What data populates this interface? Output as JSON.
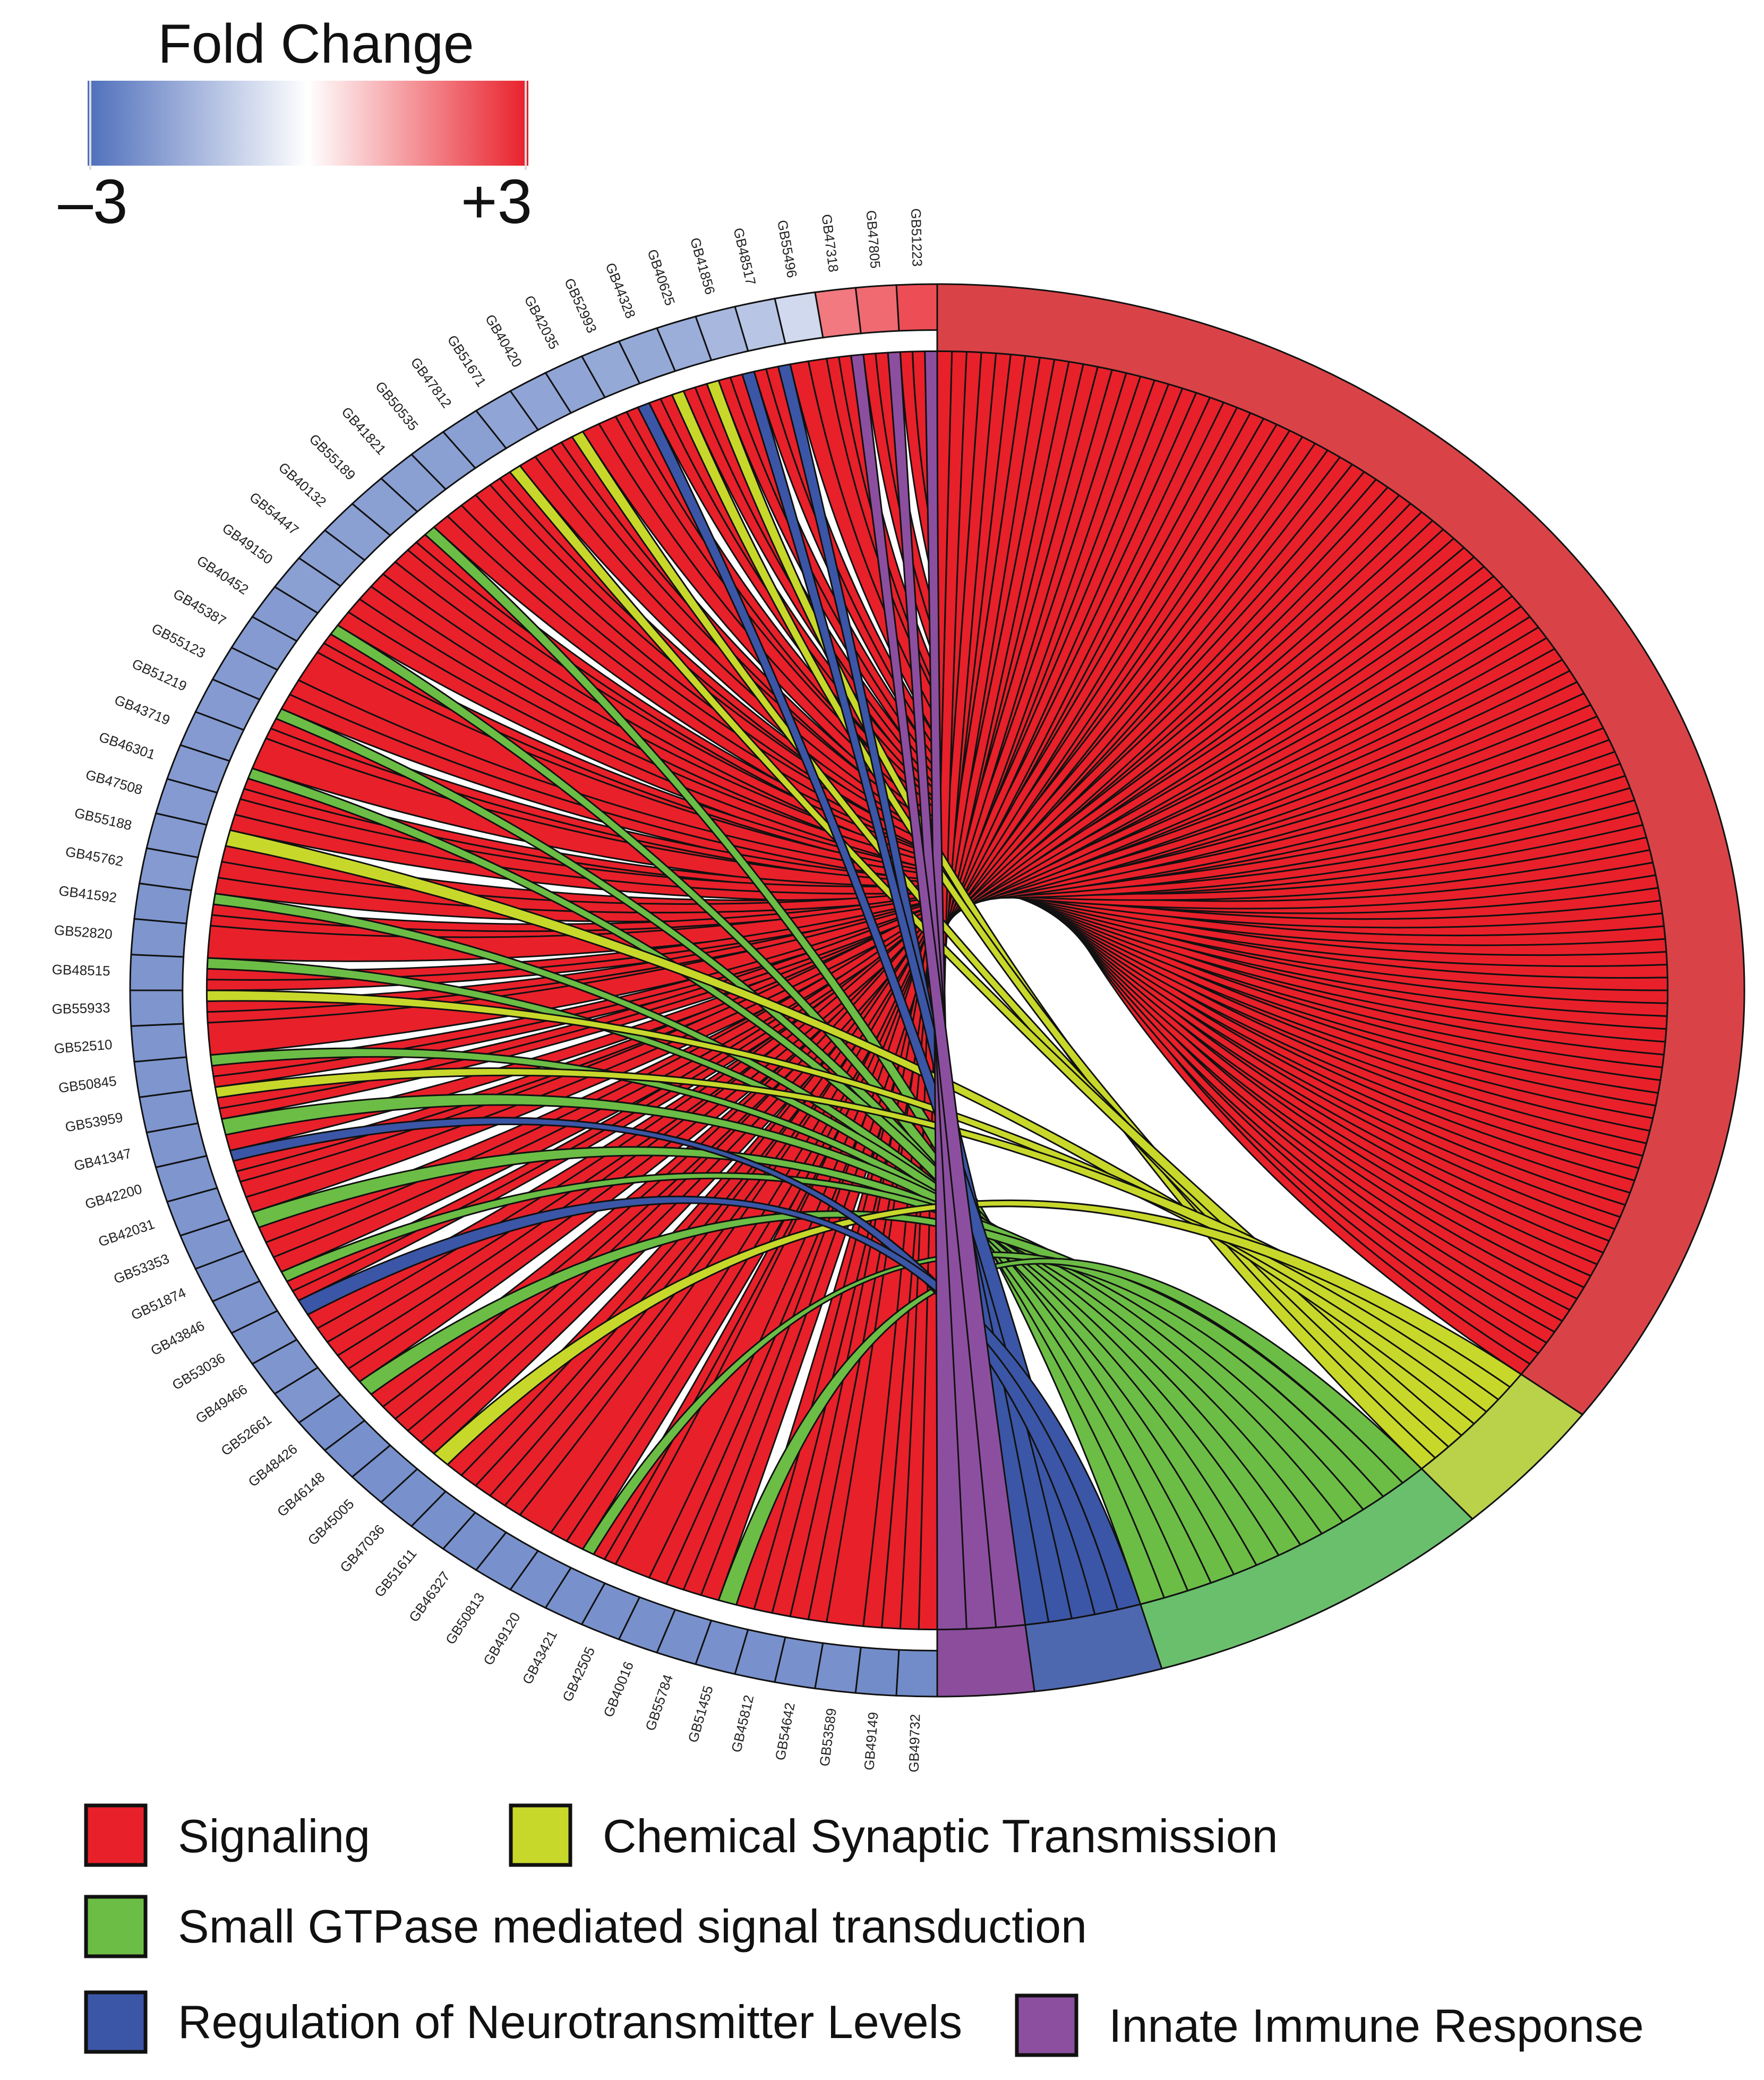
{
  "colorbar": {
    "title": "Fold Change",
    "min_label": "–3",
    "max_label": "+3",
    "min_value": -3,
    "max_value": 3,
    "colors": [
      "#4f6fbc",
      "#ffffff",
      "#e8202a"
    ]
  },
  "left_genes": [
    "GB51223",
    "GB47805",
    "GB47318",
    "GB55496",
    "GB48517",
    "GB41856",
    "GB40625",
    "GB44328",
    "GB52993",
    "GB42035",
    "GB40420",
    "GB51671",
    "GB47812",
    "GB50535",
    "GB41821",
    "GB55189",
    "GB40132",
    "GB54447",
    "GB49150",
    "GB40452",
    "GB45387",
    "GB55123",
    "GB51219",
    "GB43719",
    "GB46301",
    "GB47508",
    "GB55188",
    "GB45762",
    "GB41592",
    "GB52820",
    "GB48515",
    "GB55933",
    "GB52510",
    "GB50845",
    "GB53959",
    "GB41347",
    "GB42200",
    "GB42031",
    "GB53353",
    "GB51874",
    "GB43846",
    "GB53036",
    "GB49466",
    "GB52661",
    "GB48426",
    "GB46148",
    "GB45005",
    "GB47036",
    "GB51611",
    "GB46327",
    "GB50813",
    "GB49120",
    "GB43421",
    "GB42505",
    "GB40016",
    "GB55784",
    "GB51455",
    "GB45812",
    "GB54642",
    "GB53589",
    "GB49149",
    "GB49732"
  ],
  "left_fold_changes": [
    2.4,
    2.0,
    1.8,
    -0.8,
    -1.2,
    -1.5,
    -1.7,
    -1.8,
    -1.8,
    -1.9,
    -1.9,
    -1.9,
    -2.0,
    -2.0,
    -2.0,
    -2.0,
    -2.0,
    -2.0,
    -2.0,
    -2.1,
    -2.1,
    -2.1,
    -2.1,
    -2.1,
    -2.1,
    -2.1,
    -2.1,
    -2.1,
    -2.2,
    -2.2,
    -2.2,
    -2.2,
    -2.2,
    -2.2,
    -2.2,
    -2.2,
    -2.2,
    -2.2,
    -2.2,
    -2.2,
    -2.2,
    -2.2,
    -2.2,
    -2.2,
    -2.3,
    -2.3,
    -2.3,
    -2.3,
    -2.3,
    -2.3,
    -2.3,
    -2.3,
    -2.3,
    -2.3,
    -2.3,
    -2.3,
    -2.3,
    -2.3,
    -2.3,
    -2.3,
    -2.4,
    -2.4
  ],
  "terms": [
    {
      "name": "Signaling",
      "color": "#e8202a",
      "band_color": "#d94347",
      "count": 110
    },
    {
      "name": "Chemical Synaptic Transmission",
      "color": "#c8d82b",
      "band_color": "#b9d24a",
      "count": 10
    },
    {
      "name": "Small GTPase mediated signal transduction",
      "color": "#6cbd45",
      "band_color": "#6abf6c",
      "count": 22
    },
    {
      "name": "Regulation of Neurotransmitter Levels",
      "color": "#3b56a6",
      "band_color": "#4e68b0",
      "count": 8
    },
    {
      "name": "Innate Immune Response",
      "color": "#8c4f9f",
      "band_color": "#8b4d9c",
      "count": 6
    }
  ],
  "special_chords": [
    {
      "gene_index": 4,
      "term": 3
    },
    {
      "gene_index": 5,
      "term": 3
    },
    {
      "gene_index": 8,
      "term": 3
    },
    {
      "gene_index": 36,
      "term": 3
    },
    {
      "gene_index": 41,
      "term": 3
    },
    {
      "gene_index": 0,
      "term": 4
    },
    {
      "gene_index": 1,
      "term": 4
    },
    {
      "gene_index": 2,
      "term": 4
    },
    {
      "gene_index": 6,
      "term": 1
    },
    {
      "gene_index": 7,
      "term": 1
    },
    {
      "gene_index": 10,
      "term": 1
    },
    {
      "gene_index": 12,
      "term": 1
    },
    {
      "gene_index": 26,
      "term": 1
    },
    {
      "gene_index": 31,
      "term": 1
    },
    {
      "gene_index": 34,
      "term": 1
    },
    {
      "gene_index": 47,
      "term": 1
    },
    {
      "gene_index": 15,
      "term": 2
    },
    {
      "gene_index": 19,
      "term": 2
    },
    {
      "gene_index": 22,
      "term": 2
    },
    {
      "gene_index": 24,
      "term": 2
    },
    {
      "gene_index": 28,
      "term": 2
    },
    {
      "gene_index": 30,
      "term": 2
    },
    {
      "gene_index": 33,
      "term": 2
    },
    {
      "gene_index": 35,
      "term": 2
    },
    {
      "gene_index": 38,
      "term": 2
    },
    {
      "gene_index": 40,
      "term": 2
    },
    {
      "gene_index": 44,
      "term": 2
    },
    {
      "gene_index": 52,
      "term": 2
    },
    {
      "gene_index": 56,
      "term": 2
    }
  ]
}
